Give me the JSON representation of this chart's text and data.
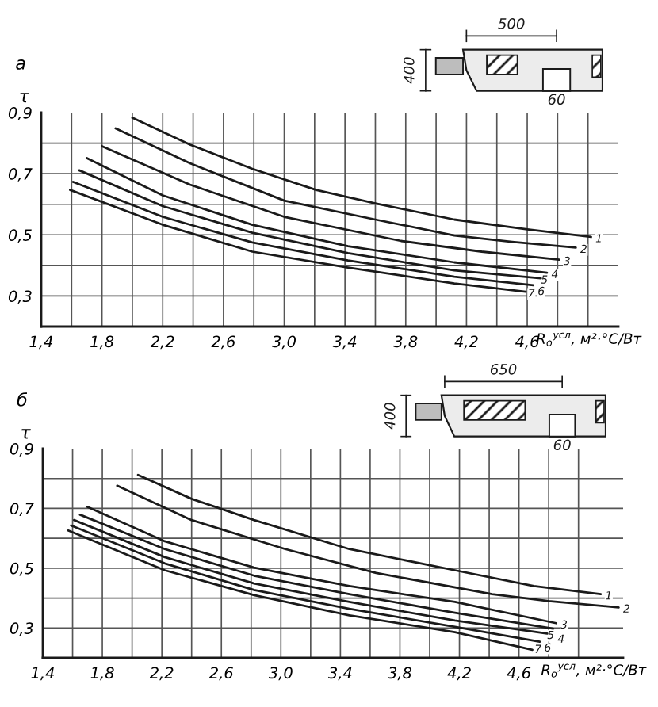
{
  "chart_data": [
    {
      "type": "line",
      "title": "а",
      "ylabel": "τ",
      "xlabel": "R$_{о}$$^{усл}$, м²·°C/Вт",
      "xlim": [
        1.4,
        5.2
      ],
      "ylim": [
        0.2,
        0.9
      ],
      "grid": true,
      "line_style": "solid",
      "xticks": [
        {
          "value": 1.4,
          "label": "1,4"
        },
        {
          "value": 1.6,
          "label": null
        },
        {
          "value": 1.8,
          "label": "1,8"
        },
        {
          "value": 2.0,
          "label": null
        },
        {
          "value": 2.2,
          "label": "2,2"
        },
        {
          "value": 2.4,
          "label": null
        },
        {
          "value": 2.6,
          "label": "2,6"
        },
        {
          "value": 2.8,
          "label": null
        },
        {
          "value": 3.0,
          "label": "3,0"
        },
        {
          "value": 3.2,
          "label": null
        },
        {
          "value": 3.4,
          "label": "3,4"
        },
        {
          "value": 3.6,
          "label": null
        },
        {
          "value": 3.8,
          "label": "3,8"
        },
        {
          "value": 4.0,
          "label": null
        },
        {
          "value": 4.2,
          "label": "4,2"
        },
        {
          "value": 4.4,
          "label": null
        },
        {
          "value": 4.6,
          "label": "4,6"
        },
        {
          "value": 4.8,
          "label": null
        },
        {
          "value": 5.0,
          "label": null
        }
      ],
      "yticks": [
        {
          "value": 0.3,
          "label": "0,3"
        },
        {
          "value": 0.4,
          "label": null
        },
        {
          "value": 0.5,
          "label": "0,5"
        },
        {
          "value": 0.6,
          "label": null
        },
        {
          "value": 0.7,
          "label": "0,7"
        },
        {
          "value": 0.8,
          "label": null
        },
        {
          "value": 0.9,
          "label": "0,9"
        }
      ],
      "annotations": [
        "500",
        "400",
        "60"
      ],
      "series": [
        {
          "name": "1",
          "color": "#1a1a1a",
          "x": [
            2.0,
            2.38,
            2.79,
            3.21,
            3.6,
            4.12,
            4.6,
            5.02
          ],
          "values": [
            0.883,
            0.795,
            0.716,
            0.647,
            0.603,
            0.55,
            0.518,
            0.493
          ]
        },
        {
          "name": "2",
          "color": "#1a1a1a",
          "x": [
            1.89,
            2.38,
            3.0,
            3.6,
            4.12,
            4.5,
            4.92
          ],
          "values": [
            0.848,
            0.734,
            0.612,
            0.55,
            0.498,
            0.477,
            0.458
          ]
        },
        {
          "name": "3",
          "color": "#1a1a1a",
          "x": [
            1.8,
            2.38,
            3.0,
            3.77,
            4.3,
            4.81
          ],
          "values": [
            0.79,
            0.664,
            0.559,
            0.48,
            0.445,
            0.419
          ]
        },
        {
          "name": "4",
          "color": "#1a1a1a",
          "x": [
            1.7,
            2.2,
            2.79,
            3.42,
            4.12,
            4.73
          ],
          "values": [
            0.751,
            0.629,
            0.533,
            0.463,
            0.41,
            0.376
          ]
        },
        {
          "name": "5",
          "color": "#1a1a1a",
          "x": [
            1.65,
            2.2,
            2.79,
            3.42,
            4.12,
            4.69
          ],
          "values": [
            0.711,
            0.594,
            0.507,
            0.44,
            0.384,
            0.358
          ]
        },
        {
          "name": "6",
          "color": "#1a1a1a",
          "x": [
            1.61,
            2.2,
            2.79,
            3.42,
            4.12,
            4.64
          ],
          "values": [
            0.673,
            0.559,
            0.475,
            0.416,
            0.363,
            0.335
          ]
        },
        {
          "name": "7",
          "color": "#1a1a1a",
          "x": [
            1.59,
            2.2,
            2.79,
            3.42,
            4.12,
            4.59
          ],
          "values": [
            0.647,
            0.533,
            0.445,
            0.393,
            0.341,
            0.314
          ]
        }
      ]
    },
    {
      "type": "line",
      "title": "б",
      "ylabel": "τ",
      "xlabel": "R$_{о}$$^{усл}$, м²·°C/Вт",
      "xlim": [
        1.4,
        5.3
      ],
      "ylim": [
        0.2,
        0.9
      ],
      "grid": true,
      "line_style": "solid",
      "xticks": [
        {
          "value": 1.4,
          "label": "1,4"
        },
        {
          "value": 1.6,
          "label": null
        },
        {
          "value": 1.8,
          "label": "1,8"
        },
        {
          "value": 2.0,
          "label": null
        },
        {
          "value": 2.2,
          "label": "2,2"
        },
        {
          "value": 2.4,
          "label": null
        },
        {
          "value": 2.6,
          "label": "2,6"
        },
        {
          "value": 2.8,
          "label": null
        },
        {
          "value": 3.0,
          "label": "3,0"
        },
        {
          "value": 3.2,
          "label": null
        },
        {
          "value": 3.4,
          "label": "3,4"
        },
        {
          "value": 3.6,
          "label": null
        },
        {
          "value": 3.8,
          "label": "3,8"
        },
        {
          "value": 4.0,
          "label": null
        },
        {
          "value": 4.2,
          "label": "4,2"
        },
        {
          "value": 4.4,
          "label": null
        },
        {
          "value": 4.6,
          "label": "4,6"
        },
        {
          "value": 4.8,
          "label": null
        },
        {
          "value": 5.0,
          "label": null
        }
      ],
      "yticks": [
        {
          "value": 0.3,
          "label": "0,3"
        },
        {
          "value": 0.4,
          "label": null
        },
        {
          "value": 0.5,
          "label": "0,5"
        },
        {
          "value": 0.6,
          "label": null
        },
        {
          "value": 0.7,
          "label": "0,7"
        },
        {
          "value": 0.8,
          "label": null
        },
        {
          "value": 0.9,
          "label": "0,9"
        }
      ],
      "annotations": [
        "650",
        "400",
        "60"
      ],
      "series": [
        {
          "name": "1",
          "color": "#1a1a1a",
          "x": [
            2.04,
            2.4,
            2.82,
            3.46,
            4.17,
            4.7,
            5.15
          ],
          "values": [
            0.812,
            0.732,
            0.661,
            0.564,
            0.493,
            0.44,
            0.413
          ]
        },
        {
          "name": "2",
          "color": "#1a1a1a",
          "x": [
            1.9,
            2.4,
            3.03,
            3.64,
            4.42,
            4.8,
            5.27
          ],
          "values": [
            0.776,
            0.661,
            0.564,
            0.484,
            0.413,
            0.39,
            0.369
          ]
        },
        {
          "name": "3",
          "color": "#1a1a1a",
          "x": [
            1.7,
            2.22,
            2.82,
            3.46,
            4.17,
            4.85
          ],
          "values": [
            0.705,
            0.59,
            0.502,
            0.44,
            0.387,
            0.316
          ]
        },
        {
          "name": "4",
          "color": "#1a1a1a",
          "x": [
            1.65,
            2.22,
            2.82,
            3.46,
            4.17,
            4.83
          ],
          "values": [
            0.679,
            0.564,
            0.475,
            0.413,
            0.351,
            0.298
          ]
        },
        {
          "name": "5",
          "color": "#1a1a1a",
          "x": [
            1.61,
            2.22,
            2.82,
            3.46,
            4.17,
            4.79
          ],
          "values": [
            0.661,
            0.537,
            0.449,
            0.387,
            0.325,
            0.281
          ]
        },
        {
          "name": "6",
          "color": "#1a1a1a",
          "x": [
            1.59,
            2.22,
            2.82,
            3.46,
            4.17,
            4.74
          ],
          "values": [
            0.643,
            0.516,
            0.427,
            0.364,
            0.304,
            0.254
          ]
        },
        {
          "name": "7",
          "color": "#1a1a1a",
          "x": [
            1.57,
            2.22,
            2.82,
            3.46,
            4.17,
            4.69
          ],
          "values": [
            0.626,
            0.493,
            0.41,
            0.342,
            0.286,
            0.227
          ]
        }
      ]
    }
  ]
}
